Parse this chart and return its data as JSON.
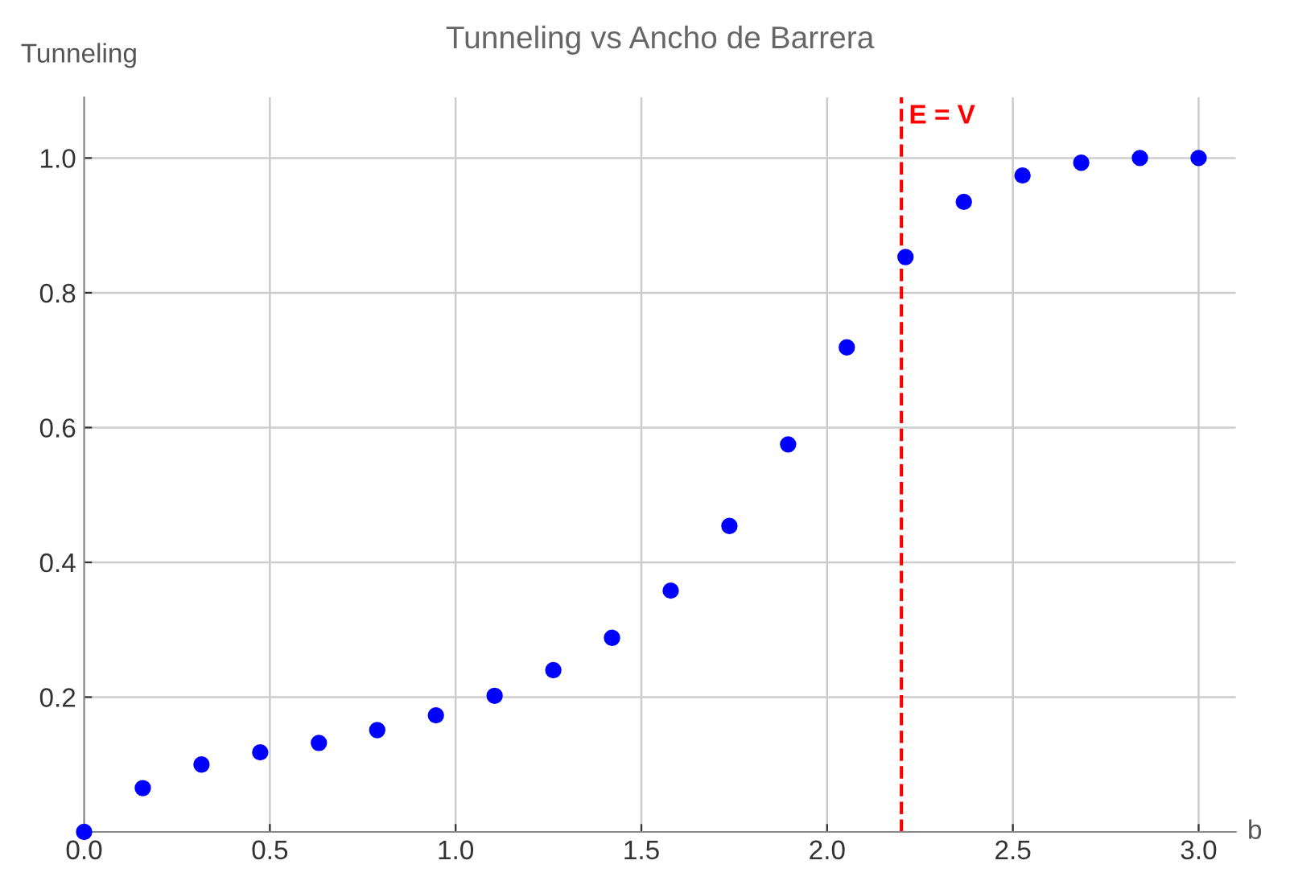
{
  "chart_data": {
    "type": "scatter",
    "title": "Tunneling vs Ancho de Barrera",
    "xlabel": "b",
    "ylabel": "Tunneling",
    "x": [
      0,
      0.158,
      0.316,
      0.474,
      0.632,
      0.789,
      0.947,
      1.105,
      1.263,
      1.421,
      1.579,
      1.737,
      1.895,
      2.053,
      2.211,
      2.368,
      2.526,
      2.684,
      2.842,
      3.0
    ],
    "series": [
      {
        "color": "#0000ff",
        "values": [
          0,
          0.065,
          0.1,
          0.118,
          0.132,
          0.151,
          0.173,
          0.202,
          0.24,
          0.288,
          0.358,
          0.454,
          0.575,
          0.719,
          0.853,
          0.935,
          0.974,
          0.993,
          1.0,
          1.0
        ]
      }
    ],
    "xlim": [
      0,
      3.1
    ],
    "ylim": [
      0,
      1.09
    ],
    "xticks": [
      {
        "value": 0,
        "label": "0.0"
      },
      0.5,
      {
        "value": 1,
        "label": "1.0"
      },
      1.5,
      {
        "value": 2,
        "label": "2.0"
      },
      2.5,
      {
        "value": 3,
        "label": "3.0"
      }
    ],
    "yticks": [
      0.2,
      0.4,
      0.6,
      0.8,
      {
        "value": 1,
        "label": "1.0"
      }
    ],
    "ref_lines": [
      {
        "axis": "x",
        "value": 2.2,
        "label": "E = V",
        "color": "#ff0000",
        "line_style": "dashed"
      }
    ],
    "grid": true,
    "marker": "circle"
  }
}
